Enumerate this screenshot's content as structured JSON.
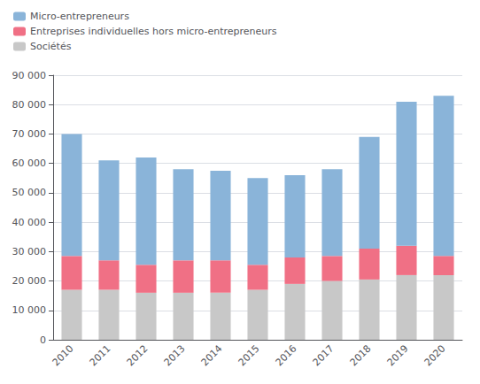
{
  "chart_data": {
    "type": "bar",
    "stacked": true,
    "grid": true,
    "legend": "upper left",
    "categories": [
      "2010",
      "2011",
      "2012",
      "2013",
      "2014",
      "2015",
      "2016",
      "2017",
      "2018",
      "2019",
      "2020"
    ],
    "series": [
      {
        "name": "Sociétés",
        "color": "#c8c8c8",
        "values": [
          17000,
          17000,
          16000,
          16000,
          16000,
          17000,
          19000,
          20000,
          20500,
          22000,
          22000
        ]
      },
      {
        "name": "Entreprises individuelles hors micro-entrepreneurs",
        "color": "#f07085",
        "values": [
          11500,
          10000,
          9500,
          11000,
          11000,
          8500,
          9000,
          8500,
          10500,
          10000,
          6500
        ]
      },
      {
        "name": "Micro-entrepreneurs",
        "color": "#8ab4d9",
        "values": [
          41500,
          34000,
          36500,
          31000,
          30500,
          29500,
          28000,
          29500,
          38000,
          49000,
          54500
        ]
      }
    ],
    "ylim": [
      0,
      90000
    ],
    "yticks": [
      0,
      {
        "value": 10000,
        "label": "10 000"
      },
      {
        "value": 20000,
        "label": "20 000"
      },
      {
        "value": 30000,
        "label": "30 000"
      },
      {
        "value": 40000,
        "label": "40 000"
      },
      {
        "value": 50000,
        "label": "50 000"
      },
      {
        "value": 60000,
        "label": "60 000"
      },
      {
        "value": 70000,
        "label": "70 000"
      },
      {
        "value": 80000,
        "label": "80 000"
      },
      {
        "value": 90000,
        "label": "90 000"
      }
    ]
  }
}
